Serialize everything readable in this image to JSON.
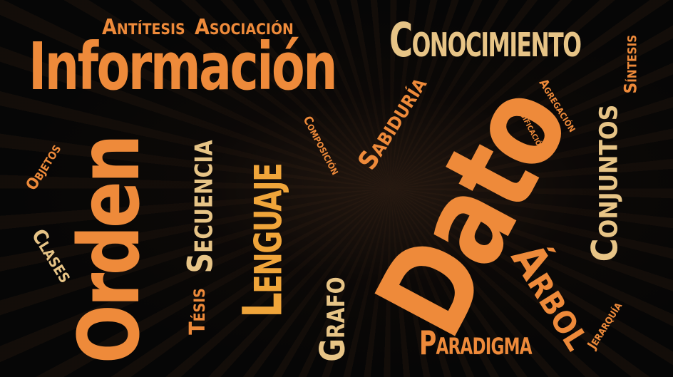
{
  "words": {
    "antitesis": "Antítesis",
    "asociacion": "Asociación",
    "informacion": "Información",
    "conocimiento": "Conocimiento",
    "sintesis": "Síntesis",
    "agregacion": "Agregación",
    "clasificacion": "Clasificación",
    "conjuntos": "Conjuntos",
    "sabiduria": "Sabiduría",
    "composicion": "Composición",
    "objetos": "Objetos",
    "clases": "Clases",
    "orden": "Orden",
    "secuencia": "Secuencia",
    "lenguaje": "Lenguaje",
    "tesis": "Tésis",
    "grafo": "Grafo",
    "dato": "Dato",
    "arbol": "Árbol",
    "paradigma": "Paradigma",
    "jerarquia": "Jerarquía"
  },
  "colors": {
    "orange": "#EE8A3A",
    "tan": "#E7C486",
    "gold": "#F0A53A",
    "background": "#060606"
  }
}
